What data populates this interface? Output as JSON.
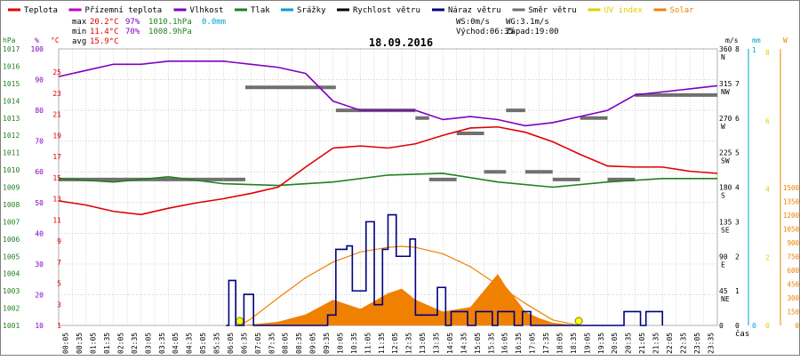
{
  "chart_data": {
    "type": "line",
    "title": "18.09.2016",
    "x_unit_label": "čas",
    "x_ticks": [
      "00:05",
      "00:35",
      "01:05",
      "01:35",
      "02:05",
      "02:35",
      "03:05",
      "03:35",
      "04:05",
      "04:35",
      "05:05",
      "05:35",
      "06:05",
      "06:35",
      "07:05",
      "07:35",
      "08:05",
      "08:35",
      "09:05",
      "09:35",
      "10:05",
      "10:35",
      "11:05",
      "11:35",
      "12:05",
      "12:35",
      "13:05",
      "13:35",
      "14:05",
      "14:35",
      "15:05",
      "15:35",
      "16:05",
      "16:35",
      "17:05",
      "17:35",
      "18:05",
      "18:35",
      "19:05",
      "19:35",
      "20:05",
      "20:35",
      "21:05",
      "21:35",
      "22:05",
      "22:35",
      "23:05",
      "23:35"
    ],
    "legend": [
      {
        "key": "temp",
        "label": "Teplota",
        "color": "#e00000"
      },
      {
        "key": "ground",
        "label": "Přízemní teplota",
        "color": "#c000c0"
      },
      {
        "key": "humidity",
        "label": "Vlhkost",
        "color": "#8000c0"
      },
      {
        "key": "pressure",
        "label": "Tlak",
        "color": "#208020"
      },
      {
        "key": "rain",
        "label": "Srážky",
        "color": "#00a0d0"
      },
      {
        "key": "wind",
        "label": "Rychlost větru",
        "color": "#000000"
      },
      {
        "key": "gust",
        "label": "Náraz větru",
        "color": "#000080"
      },
      {
        "key": "dir",
        "label": "Směr větru",
        "color": "#707070"
      },
      {
        "key": "uv",
        "label": "UV index",
        "color": "#e0d000"
      },
      {
        "key": "solar",
        "label": "Solar",
        "color": "#f08000"
      }
    ],
    "stats": {
      "max_label": "max",
      "max_temp": "20.2°C",
      "max_hum": "97%",
      "max_press": "1010.1hPa",
      "rain_total": "0.0mm",
      "min_label": "min",
      "min_temp": "11.4°C",
      "min_hum": "70%",
      "min_press": "1008.9hPa",
      "avg_label": "avg",
      "avg_temp": "15.9°C",
      "ws": "WS:0m/s",
      "wg": "WG:3.1m/s",
      "sunrise": "Východ:06:35",
      "sunset": "Západ:19:00"
    },
    "axes": {
      "hpa": {
        "unit": "hPa",
        "ticks": [
          "1017",
          "1016",
          "1015",
          "1014",
          "1013",
          "1012",
          "1011",
          "1010",
          "1009",
          "1008",
          "1007",
          "1006",
          "1005",
          "1004",
          "1003",
          "1002",
          "1001"
        ]
      },
      "percent": {
        "unit": "%",
        "ticks": [
          "100",
          "90",
          "80",
          "70",
          "60",
          "50",
          "40",
          "30",
          "20",
          "10"
        ]
      },
      "celsius": {
        "unit": "°C",
        "ticks": [
          "25",
          "23",
          "21",
          "19",
          "17",
          "15",
          "13",
          "11",
          "9",
          "7",
          "5",
          "3",
          "1"
        ]
      },
      "speed": {
        "unit": "m/s",
        "ticks": [
          "8",
          "7",
          "6",
          "5",
          "4",
          "3",
          "2",
          "1",
          "0"
        ]
      },
      "direction": {
        "ticks": [
          "360",
          "315",
          "270",
          "225",
          "180",
          "135",
          "90",
          "45",
          "0"
        ],
        "compass": [
          "N",
          "NW",
          "W",
          "SW",
          "S",
          "SE",
          "E",
          "NE"
        ]
      },
      "rain": {
        "unit": "mm",
        "ticks": [
          "1",
          "0"
        ]
      },
      "uv": {
        "ticks": [
          "8",
          "6",
          "4",
          "2",
          "0"
        ]
      },
      "watts": {
        "unit": "W",
        "ticks": [
          "1500",
          "1350",
          "1200",
          "1050",
          "900",
          "750",
          "600",
          "450",
          "300",
          "150",
          "0"
        ]
      }
    },
    "series": {
      "temp": {
        "unit": "°C",
        "x_hours": [
          0,
          1,
          2,
          3,
          4,
          5,
          6,
          7,
          8,
          9,
          10,
          11,
          12,
          13,
          14,
          15,
          16,
          17,
          18,
          19,
          20,
          21,
          22,
          23,
          24
        ],
        "values": [
          12.8,
          12.4,
          11.8,
          11.5,
          12.1,
          12.6,
          13.0,
          13.5,
          14.1,
          16.0,
          17.8,
          18.0,
          17.8,
          18.2,
          19.0,
          19.7,
          19.8,
          19.3,
          18.4,
          17.2,
          16.1,
          16.0,
          16.0,
          15.6,
          15.4
        ]
      },
      "humidity": {
        "unit": "%",
        "x_hours": [
          0,
          1,
          2,
          3,
          4,
          5,
          6,
          7,
          8,
          9,
          10,
          11,
          12,
          13,
          14,
          15,
          16,
          17,
          18,
          19,
          20,
          21,
          22,
          23,
          24
        ],
        "values": [
          91,
          93,
          95,
          95,
          96,
          96,
          96,
          95,
          94,
          92,
          83,
          80,
          80,
          80,
          77,
          78,
          77,
          75,
          76,
          78,
          80,
          85,
          86,
          87,
          88
        ]
      },
      "pressure": {
        "unit": "hPa",
        "x_hours": [
          0,
          2,
          4,
          6,
          8,
          10,
          12,
          14,
          16,
          18,
          20,
          22,
          24
        ],
        "values": [
          1009.5,
          1009.3,
          1009.6,
          1009.2,
          1009.1,
          1009.3,
          1009.7,
          1009.8,
          1009.3,
          1009.0,
          1009.3,
          1009.5,
          1009.5
        ]
      },
      "wind_direction": {
        "unit": "deg",
        "x_hours": [
          0,
          6.0,
          6.8,
          9.5,
          10.1,
          13.0,
          13.5,
          14.5,
          15.5,
          16.3,
          17.0,
          18.0,
          19.0,
          20.0,
          21.0,
          24.0
        ],
        "values": [
          190,
          190,
          310,
          310,
          280,
          270,
          190,
          250,
          200,
          280,
          200,
          190,
          270,
          190,
          300,
          300
        ]
      },
      "gust": {
        "unit": "m/s",
        "x_hours": [
          6.1,
          6.2,
          6.35,
          6.45,
          6.75,
          6.9,
          7.1,
          9.8,
          10.1,
          10.5,
          10.7,
          11.0,
          11.2,
          11.5,
          11.8,
          12.0,
          12.3,
          12.6,
          12.8,
          13.0,
          13.3,
          13.6,
          13.8,
          14.1,
          14.3,
          14.6,
          14.9,
          15.2,
          15.4,
          15.8,
          16.0,
          16.3,
          16.6,
          16.9,
          17.2,
          17.5,
          17.7,
          20.4,
          20.6,
          20.9,
          21.2,
          21.4,
          21.7,
          22.0
        ],
        "values": [
          0,
          1.3,
          1.3,
          0,
          0.9,
          0.9,
          0,
          0.3,
          2.2,
          2.3,
          1.0,
          1.0,
          3.0,
          0.6,
          2.2,
          3.2,
          2.0,
          2.0,
          2.5,
          0.3,
          0.3,
          0.3,
          1.1,
          0,
          0.4,
          0.4,
          0,
          0.4,
          0.4,
          0,
          0.4,
          0.4,
          0,
          0.4,
          0,
          0,
          0,
          0,
          0.4,
          0.4,
          0,
          0.4,
          0.4,
          0
        ]
      },
      "solar": {
        "unit": "W/m2",
        "x_hours": [
          6.5,
          7,
          8,
          9,
          10,
          11,
          12,
          12.5,
          13,
          14,
          15,
          15.5,
          16,
          16.3,
          16.5,
          17,
          17.5,
          18,
          18.6,
          19.0
        ],
        "values": [
          0,
          10,
          40,
          120,
          280,
          180,
          350,
          400,
          280,
          150,
          200,
          380,
          560,
          420,
          350,
          150,
          80,
          30,
          10,
          0
        ]
      },
      "solar_clear_sky": {
        "unit": "W/m2",
        "x_hours": [
          6.6,
          7,
          8,
          9,
          10,
          11,
          12,
          12.5,
          13,
          14,
          15,
          16,
          17,
          18,
          18.95
        ],
        "values": [
          0,
          70,
          300,
          520,
          690,
          800,
          850,
          860,
          850,
          780,
          640,
          440,
          240,
          60,
          0
        ]
      },
      "sun_markers_hours": [
        6.6,
        18.95
      ]
    }
  }
}
